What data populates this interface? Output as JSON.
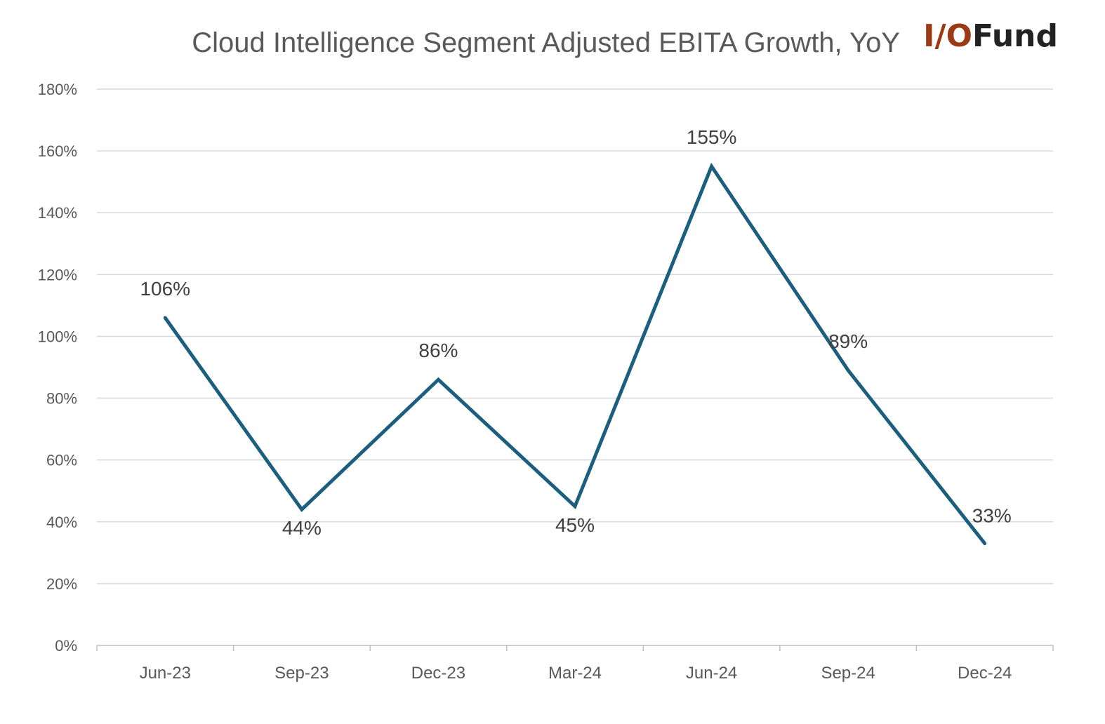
{
  "chart_data": {
    "type": "line",
    "title": "Cloud Intelligence Segment Adjusted EBITA Growth, YoY",
    "xlabel": "",
    "ylabel": "",
    "categories": [
      "Jun-23",
      "Sep-23",
      "Dec-23",
      "Mar-24",
      "Jun-24",
      "Sep-24",
      "Dec-24"
    ],
    "series": [
      {
        "values": [
          106,
          44,
          86,
          45,
          155,
          89,
          33
        ],
        "labels": [
          "106%",
          "44%",
          "86%",
          "45%",
          "155%",
          "89%",
          "33%"
        ]
      }
    ],
    "ylim": [
      0,
      180
    ],
    "yticks": [
      0,
      20,
      40,
      60,
      80,
      100,
      120,
      140,
      160,
      180
    ],
    "ytick_labels": [
      "0%",
      "20%",
      "40%",
      "60%",
      "80%",
      "100%",
      "120%",
      "140%",
      "160%",
      "180%"
    ],
    "grid": true,
    "legend": "none",
    "line_color": "#1b5e7e"
  },
  "logo": {
    "io": "I/O",
    "fund": "Fund",
    "io_color": "#9b3a14",
    "fund_color": "#222222"
  }
}
